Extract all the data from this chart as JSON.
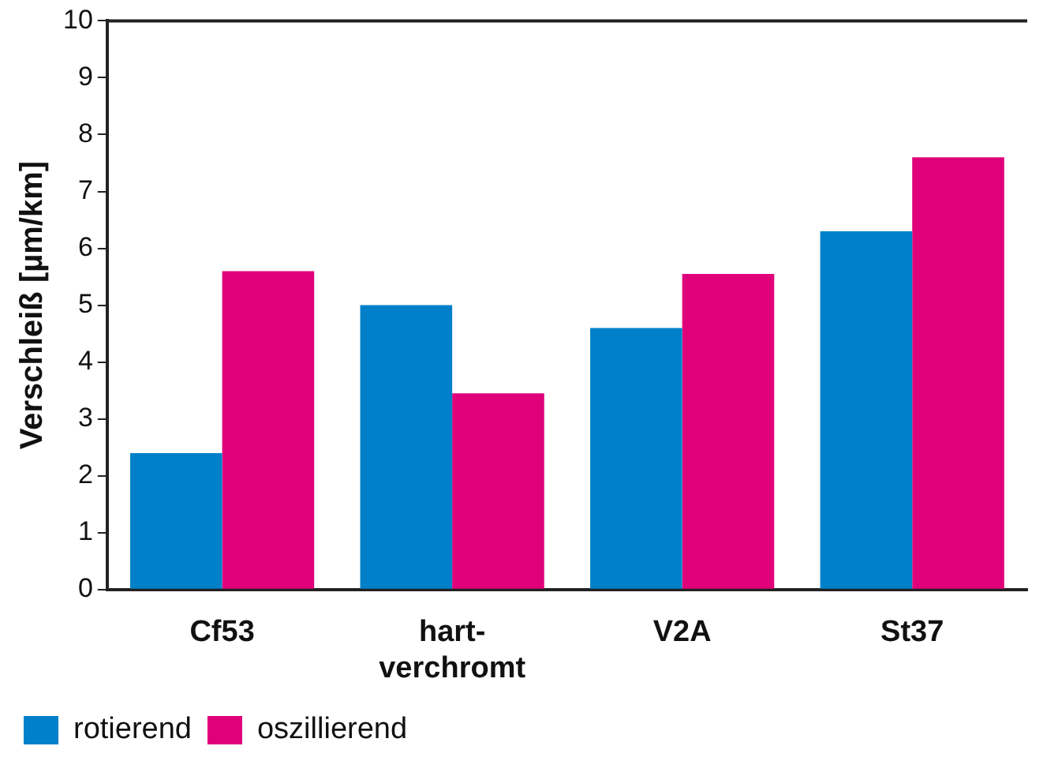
{
  "chart_data": {
    "type": "bar",
    "ylabel": "Verschleiß [µm/km]",
    "categories": [
      "Cf53",
      "hart-\nverchromt",
      "V2A",
      "St37"
    ],
    "series": [
      {
        "name": "rotierend",
        "color": "#0080c8",
        "values": [
          2.4,
          5.0,
          4.6,
          6.3
        ]
      },
      {
        "name": "oszillierend",
        "color": "#e0007a",
        "values": [
          5.6,
          3.45,
          5.55,
          7.6
        ]
      }
    ],
    "ylim": [
      0,
      10
    ],
    "yticks": [
      0,
      1,
      2,
      3,
      4,
      5,
      6,
      7,
      8,
      9,
      10
    ],
    "grid": false,
    "legend": "bottom"
  }
}
